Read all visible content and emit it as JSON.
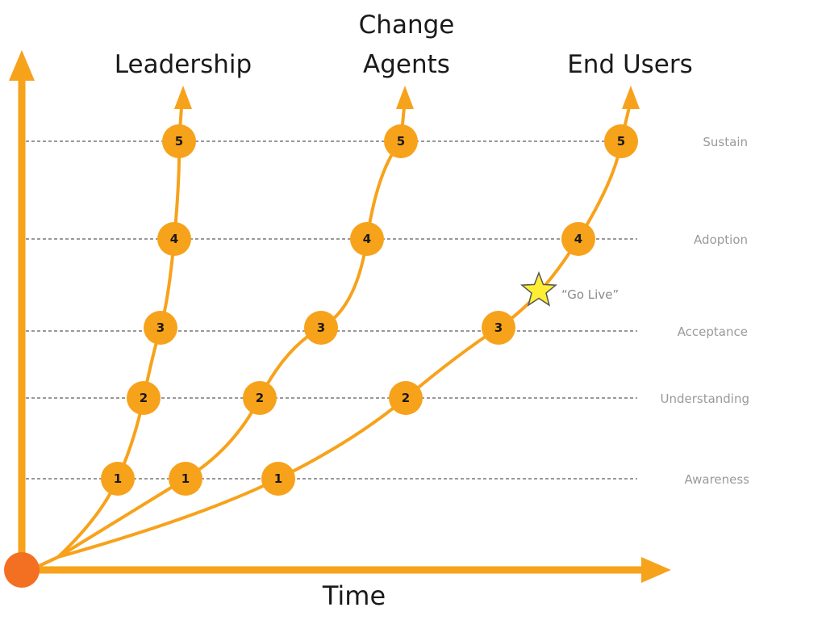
{
  "series_titles": {
    "leadership": "Leadership",
    "change_agents_line1": "Change",
    "change_agents_line2": "Agents",
    "end_users": "End Users"
  },
  "stages": [
    "Awareness",
    "Understanding",
    "Acceptance",
    "Adoption",
    "Sustain"
  ],
  "node_numbers": [
    "1",
    "2",
    "3",
    "4",
    "5"
  ],
  "x_axis_label": "Time",
  "milestone": {
    "label": "“Go Live”",
    "icon": "star-icon"
  },
  "colors": {
    "accent": "#f7a21b",
    "origin": "#f36f21",
    "star": "#ffee33",
    "grid": "#999999"
  }
}
